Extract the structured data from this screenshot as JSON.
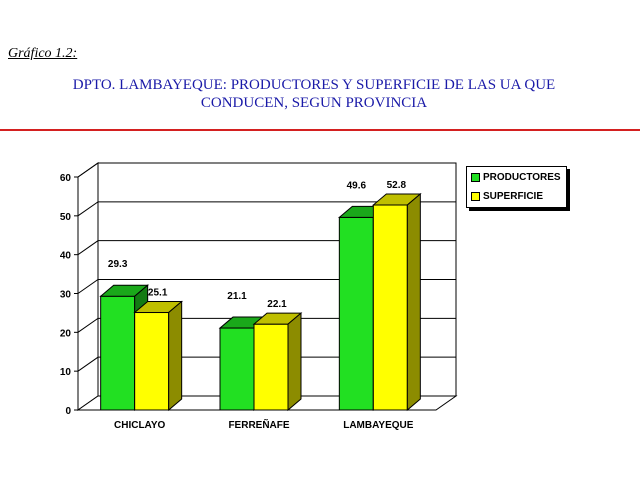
{
  "caption": "Gráfico 1.2:",
  "title_line1": "DPTO. LAMBAYEQUE: PRODUCTORES Y SUPERFICIE DE LAS UA QUE",
  "title_line2": "CONDUCEN, SEGUN PROVINCIA",
  "colors": {
    "title": "#1a1aa8",
    "rule": "#d42020"
  },
  "chart_data": {
    "type": "bar",
    "categories": [
      "CHICLAYO",
      "FERREÑAFE",
      "LAMBAYEQUE"
    ],
    "series": [
      {
        "name": "PRODUCTORES",
        "values": [
          29.3,
          21.1,
          49.6
        ],
        "color": "#22e022"
      },
      {
        "name": "SUPERFICIE",
        "values": [
          25.1,
          22.1,
          52.8
        ],
        "color": "#ffff00"
      }
    ],
    "data_labels": [
      [
        "29.3",
        "21.1",
        "49.6"
      ],
      [
        "25.1",
        "22.1",
        "52.8"
      ]
    ],
    "ylim": [
      0,
      60
    ],
    "yticks": [
      0,
      10,
      20,
      30,
      40,
      50,
      60
    ],
    "three_d": true,
    "grid": true,
    "legend_position": "top-right"
  }
}
